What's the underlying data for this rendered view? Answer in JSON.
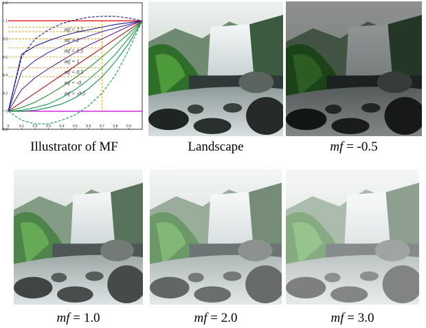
{
  "chart_data": {
    "type": "line",
    "x": [
      0,
      0.1,
      0.2,
      0.3,
      0.4,
      0.5,
      0.6,
      0.7,
      0.8,
      0.9,
      1
    ],
    "series": [
      {
        "label": "mf = 2.5",
        "color": "#1c1c8a",
        "values": [
          0,
          0.63,
          0.72,
          0.78,
          0.83,
          0.87,
          0.9,
          0.93,
          0.96,
          0.98,
          1
        ]
      },
      {
        "label": "mf = 2",
        "color": "#4a2ea0",
        "values": [
          0,
          0.44,
          0.56,
          0.65,
          0.72,
          0.78,
          0.83,
          0.88,
          0.92,
          0.96,
          1
        ]
      },
      {
        "label": "mf = 1.5",
        "color": "#6b1f8c",
        "values": [
          0,
          0.24,
          0.37,
          0.47,
          0.56,
          0.65,
          0.73,
          0.8,
          0.87,
          0.94,
          1
        ]
      },
      {
        "label": "mf = 1",
        "color": "#a31414",
        "values": [
          0,
          0.1,
          0.2,
          0.3,
          0.4,
          0.5,
          0.6,
          0.7,
          0.8,
          0.9,
          1
        ]
      },
      {
        "label": "mf = 0.5",
        "color": "#2e8b2e",
        "values": [
          0,
          0.04,
          0.1,
          0.18,
          0.27,
          0.37,
          0.48,
          0.6,
          0.73,
          0.86,
          1
        ]
      },
      {
        "label": "mf = -0",
        "color": "#1a9a4a",
        "values": [
          0,
          0.01,
          0.04,
          0.08,
          0.15,
          0.24,
          0.35,
          0.48,
          0.63,
          0.81,
          1
        ]
      },
      {
        "label": "mf = -0.5",
        "color": "#138a5a",
        "values": [
          0,
          0,
          0.01,
          0.04,
          0.08,
          0.15,
          0.25,
          0.38,
          0.55,
          0.75,
          1
        ]
      },
      {
        "color": "#1c1c8a",
        "dashed": true,
        "values": [
          0,
          0.6,
          0.8,
          0.9,
          0.97,
          1.01,
          1.04,
          1.05,
          1.05,
          1.03,
          1
        ]
      },
      {
        "color": "#1a9a4a",
        "dashed": true,
        "values": [
          0,
          -0.1,
          -0.14,
          -0.14,
          -0.1,
          -0.04,
          0.06,
          0.2,
          0.4,
          0.68,
          1
        ]
      }
    ],
    "hlines": [
      {
        "value": 1,
        "color": "#e00000"
      },
      {
        "value": 0,
        "color": "#cc00cc"
      }
    ],
    "guide_x": 0.7,
    "guide_color": "#e08a00",
    "xlim": [
      0,
      1
    ],
    "ylim": [
      -0.2,
      1.2
    ],
    "xticks": [
      0,
      0.1,
      0.2,
      0.3,
      0.4,
      0.5,
      0.6,
      0.7,
      0.8,
      0.9
    ],
    "yticks": [
      -0.2,
      0,
      0.2,
      0.4,
      0.6,
      0.8,
      1,
      1.2
    ]
  },
  "panels": [
    {
      "caption": "Illustrator of MF"
    },
    {
      "caption": "Landscape"
    },
    {
      "caption_italic": "mf",
      "caption": " = -0.5"
    },
    {
      "caption_italic": "mf",
      "caption": " = 1.0"
    },
    {
      "caption_italic": "mf",
      "caption": " = 2.0"
    },
    {
      "caption_italic": "mf",
      "caption": " = 3.0"
    }
  ]
}
